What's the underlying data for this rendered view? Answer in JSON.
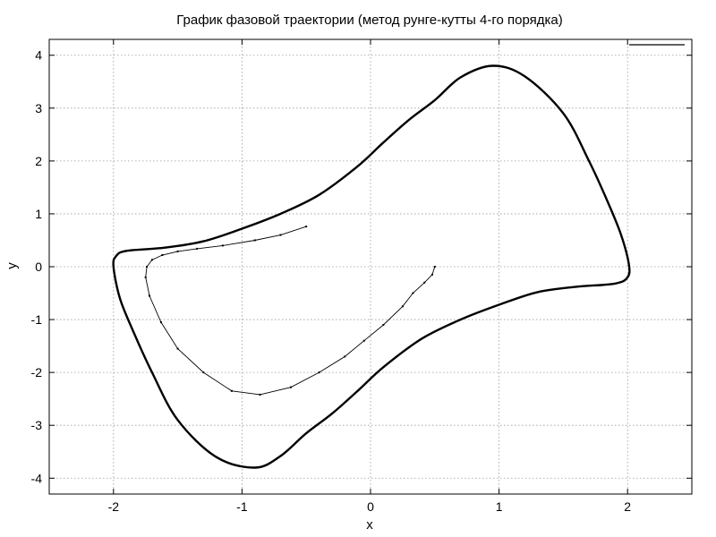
{
  "chart_data": {
    "type": "line",
    "title": "График фазовой траектории (метод рунге-кутты 4-го порядка)",
    "xlabel": "x",
    "ylabel": "y",
    "xlim": [
      -2.5,
      2.5
    ],
    "ylim": [
      -4.3,
      4.3
    ],
    "xticks": [
      -2,
      -1,
      0,
      1,
      2
    ],
    "yticks": [
      -4,
      -3,
      -2,
      -1,
      0,
      1,
      2,
      3,
      4
    ],
    "xtick_labels": [
      "-2",
      "-1",
      "0",
      "1",
      "2"
    ],
    "ytick_labels": [
      "-4",
      "-3",
      "-2",
      "-1",
      "0",
      "1",
      "2",
      "3",
      "4"
    ],
    "grid": true,
    "legend": "top-right",
    "series": [
      {
        "color": "#000000",
        "transient": [
          [
            0.5,
            0.0
          ],
          [
            0.48,
            -0.15
          ],
          [
            0.42,
            -0.3
          ],
          [
            0.33,
            -0.5
          ],
          [
            0.25,
            -0.75
          ],
          [
            0.1,
            -1.1
          ],
          [
            -0.05,
            -1.4
          ],
          [
            -0.2,
            -1.7
          ],
          [
            -0.4,
            -2.0
          ],
          [
            -0.62,
            -2.28
          ],
          [
            -0.86,
            -2.42
          ],
          [
            -1.08,
            -2.35
          ],
          [
            -1.3,
            -2.0
          ],
          [
            -1.5,
            -1.55
          ],
          [
            -1.63,
            -1.05
          ],
          [
            -1.72,
            -0.55
          ],
          [
            -1.75,
            -0.2
          ],
          [
            -1.74,
            0.0
          ],
          [
            -1.7,
            0.13
          ],
          [
            -1.62,
            0.22
          ],
          [
            -1.5,
            0.29
          ],
          [
            -1.35,
            0.34
          ],
          [
            -1.15,
            0.4
          ],
          [
            -0.9,
            0.5
          ],
          [
            -0.7,
            0.6
          ],
          [
            -0.5,
            0.76
          ]
        ],
        "limit_cycle": [
          [
            -2.0,
            0.0
          ],
          [
            -1.98,
            0.2
          ],
          [
            -1.9,
            0.3
          ],
          [
            -1.6,
            0.36
          ],
          [
            -1.3,
            0.48
          ],
          [
            -1.0,
            0.72
          ],
          [
            -0.7,
            1.0
          ],
          [
            -0.4,
            1.36
          ],
          [
            -0.1,
            1.9
          ],
          [
            0.1,
            2.35
          ],
          [
            0.3,
            2.78
          ],
          [
            0.5,
            3.15
          ],
          [
            0.7,
            3.58
          ],
          [
            0.95,
            3.8
          ],
          [
            1.2,
            3.6
          ],
          [
            1.5,
            2.9
          ],
          [
            1.7,
            2.0
          ],
          [
            1.85,
            1.2
          ],
          [
            1.95,
            0.6
          ],
          [
            2.01,
            0.05
          ],
          [
            2.0,
            -0.2
          ],
          [
            1.9,
            -0.32
          ],
          [
            1.6,
            -0.38
          ],
          [
            1.3,
            -0.48
          ],
          [
            1.0,
            -0.72
          ],
          [
            0.7,
            -1.0
          ],
          [
            0.4,
            -1.36
          ],
          [
            0.1,
            -1.9
          ],
          [
            -0.1,
            -2.35
          ],
          [
            -0.3,
            -2.78
          ],
          [
            -0.5,
            -3.15
          ],
          [
            -0.7,
            -3.58
          ],
          [
            -0.9,
            -3.8
          ],
          [
            -1.2,
            -3.6
          ],
          [
            -1.5,
            -2.9
          ],
          [
            -1.7,
            -2.0
          ],
          [
            -1.85,
            -1.2
          ],
          [
            -1.95,
            -0.6
          ],
          [
            -2.0,
            0.0
          ]
        ]
      }
    ]
  }
}
